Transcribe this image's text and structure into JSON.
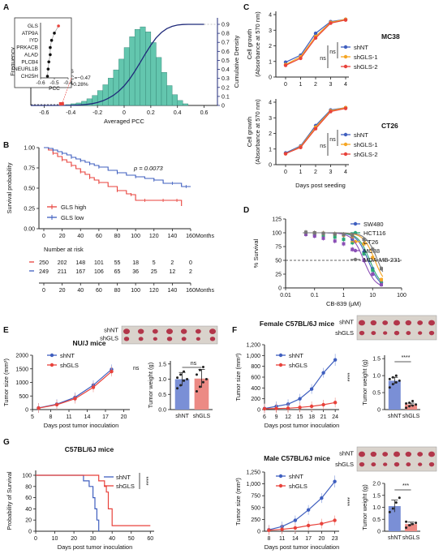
{
  "panel_letters": [
    "A",
    "B",
    "C",
    "D",
    "E",
    "F",
    "G"
  ],
  "colors": {
    "blue": "#3f5fbf",
    "red": "#e8423b",
    "orange": "#f5a623",
    "teal": "#4fb3a4",
    "hist": "#63c6ae",
    "navy": "#1f2a7a",
    "green": "#2aa876",
    "purple": "#8a4fb5",
    "gray": "#777777",
    "ebar_red": "#f19a92",
    "ebar_blue": "#8ea4df"
  },
  "chart_data": [
    {
      "id": "A",
      "type": "bar",
      "xlabel": "Averaged PCC",
      "ylabel": "Frequency",
      "y2label": "Cumulative Density",
      "xticks": [
        "-0.6",
        "-0.4",
        "-0.2",
        "0",
        "0.2",
        "0.4",
        "0.6"
      ],
      "y2ticks": [
        "0",
        "0.1",
        "0.2",
        "0.3",
        "0.4",
        "0.5",
        "0.6",
        "0.7",
        "0.8",
        "0.9"
      ],
      "bins": [
        [
          -0.42,
          1
        ],
        [
          -0.38,
          2
        ],
        [
          -0.34,
          3
        ],
        [
          -0.3,
          5
        ],
        [
          -0.26,
          8
        ],
        [
          -0.22,
          12
        ],
        [
          -0.18,
          18
        ],
        [
          -0.14,
          25
        ],
        [
          -0.1,
          33
        ],
        [
          -0.06,
          43
        ],
        [
          -0.02,
          56
        ],
        [
          0.02,
          70
        ],
        [
          0.06,
          83
        ],
        [
          0.1,
          92
        ],
        [
          0.14,
          95
        ],
        [
          0.18,
          89
        ],
        [
          0.22,
          76
        ],
        [
          0.26,
          58
        ],
        [
          0.3,
          40
        ],
        [
          0.34,
          24
        ],
        [
          0.38,
          13
        ],
        [
          0.42,
          6
        ],
        [
          0.46,
          2
        ]
      ],
      "annotation": [
        "GLS",
        "PCC=−0.47",
        "cdf=0.28%"
      ],
      "inset": {
        "xlabel": "PCC",
        "xticks": [
          "-0.6",
          "-0.5",
          "-0.4"
        ],
        "genes": [
          "GLS",
          "ATP9A",
          "IYD",
          "PRKACB",
          "ALAD",
          "PLCB4",
          "NEURL1B",
          "CH25H"
        ],
        "pcc": [
          -0.47,
          -0.5,
          -0.52,
          -0.53,
          -0.53,
          -0.54,
          -0.545,
          -0.55
        ]
      }
    },
    {
      "id": "B",
      "type": "line",
      "ylabel": "Survival probability",
      "xunit": "Months",
      "xticks": [
        "0",
        "20",
        "40",
        "60",
        "80",
        "100",
        "120",
        "140",
        "160"
      ],
      "yticks": [
        "0.00",
        "0.25",
        "0.50",
        "0.75",
        "1.00"
      ],
      "pvalue": "p = 0.0073",
      "series": [
        {
          "name": "GLS high",
          "x": [
            0,
            5,
            10,
            15,
            20,
            25,
            30,
            35,
            40,
            45,
            50,
            55,
            60,
            70,
            80,
            90,
            95,
            100,
            110,
            120,
            130,
            140,
            145,
            150
          ],
          "y": [
            1.0,
            0.97,
            0.93,
            0.89,
            0.85,
            0.82,
            0.78,
            0.74,
            0.7,
            0.67,
            0.63,
            0.6,
            0.57,
            0.52,
            0.47,
            0.43,
            0.42,
            0.35,
            0.35,
            0.35,
            0.35,
            0.35,
            0.35,
            0.28
          ]
        },
        {
          "name": "GLS low",
          "x": [
            0,
            5,
            10,
            15,
            20,
            25,
            30,
            35,
            40,
            45,
            50,
            55,
            60,
            70,
            80,
            90,
            100,
            110,
            120,
            130,
            140,
            150,
            155,
            160
          ],
          "y": [
            1.0,
            0.99,
            0.97,
            0.95,
            0.93,
            0.91,
            0.88,
            0.86,
            0.84,
            0.82,
            0.8,
            0.78,
            0.76,
            0.72,
            0.69,
            0.66,
            0.64,
            0.62,
            0.6,
            0.56,
            0.56,
            0.52,
            0.52,
            0.52
          ]
        }
      ],
      "risk_title": "Number at risk",
      "risk": [
        [
          "250",
          "202",
          "148",
          "101",
          "55",
          "18",
          "5",
          "2",
          "0"
        ],
        [
          "249",
          "211",
          "167",
          "106",
          "65",
          "36",
          "25",
          "12",
          "2"
        ]
      ]
    },
    {
      "id": "C",
      "type": "line",
      "ylabel": [
        "Cell growth",
        "(Absorbance at 570 nm)"
      ],
      "xlabel": "Days post seeding",
      "xticks": [
        "0",
        "1",
        "2",
        "3",
        "4"
      ],
      "yticks": [
        "0",
        "1",
        "2",
        "3",
        "4"
      ],
      "ns": "ns",
      "series_names": [
        "shNT",
        "shGLS-1",
        "shGLS-2"
      ],
      "panels": [
        {
          "title": "MC38",
          "values": [
            [
              0.95,
              1.4,
              2.8,
              3.55,
              3.7
            ],
            [
              0.8,
              1.3,
              2.6,
              3.5,
              3.7
            ],
            [
              0.75,
              1.2,
              2.5,
              3.45,
              3.65
            ]
          ]
        },
        {
          "title": "CT26",
          "values": [
            [
              0.75,
              1.2,
              2.5,
              3.5,
              3.65
            ],
            [
              0.7,
              1.15,
              2.4,
              3.45,
              3.65
            ],
            [
              0.7,
              1.1,
              2.3,
              3.4,
              3.6
            ]
          ]
        }
      ]
    },
    {
      "id": "D",
      "type": "line",
      "ylabel": "% Survival",
      "xlabel": "CB-839 (μM)",
      "xticks": [
        "0.01",
        "0.1",
        "1",
        "10",
        "100"
      ],
      "yticks": [
        "0",
        "25",
        "50",
        "75",
        "100",
        "125"
      ],
      "series": [
        {
          "name": "SW480",
          "ic50": 7,
          "points": [
            [
              0.05,
              100
            ],
            [
              0.1,
              99
            ],
            [
              0.2,
              98
            ],
            [
              0.5,
              97
            ],
            [
              1,
              95
            ],
            [
              2,
              88
            ],
            [
              5,
              65
            ],
            [
              10,
              35
            ],
            [
              20,
              10
            ]
          ]
        },
        {
          "name": "HCT116",
          "ic50": 8,
          "points": [
            [
              0.05,
              98
            ],
            [
              0.1,
              97
            ],
            [
              0.2,
              95
            ],
            [
              0.5,
              92
            ],
            [
              1,
              88
            ],
            [
              2,
              82
            ],
            [
              5,
              62
            ],
            [
              10,
              32
            ],
            [
              20,
              8
            ]
          ]
        },
        {
          "name": "CT26",
          "ic50": 12,
          "points": [
            [
              0.05,
              100
            ],
            [
              0.1,
              100
            ],
            [
              0.2,
              99
            ],
            [
              0.5,
              98
            ],
            [
              1,
              96
            ],
            [
              2,
              93
            ],
            [
              5,
              80
            ],
            [
              10,
              55
            ],
            [
              20,
              15
            ]
          ]
        },
        {
          "name": "MC38",
          "ic50": 5,
          "points": [
            [
              0.05,
              97
            ],
            [
              0.1,
              94
            ],
            [
              0.2,
              90
            ],
            [
              0.5,
              85
            ],
            [
              1,
              80
            ],
            [
              2,
              70
            ],
            [
              5,
              50
            ],
            [
              10,
              25
            ],
            [
              20,
              6
            ]
          ]
        },
        {
          "name": "MDA-MB-231",
          "ic50": 15,
          "points": [
            [
              0.05,
              101
            ],
            [
              0.1,
              100
            ],
            [
              0.2,
              99
            ],
            [
              0.5,
              98
            ],
            [
              1,
              97
            ],
            [
              2,
              95
            ],
            [
              5,
              88
            ],
            [
              10,
              70
            ],
            [
              20,
              35
            ]
          ]
        }
      ]
    },
    {
      "id": "E",
      "type": "line",
      "title": "NU/J mice",
      "ylabel": "Tumor size (mm³)",
      "xlabel": "Days post tumor inoculation",
      "xticks": [
        "5",
        "8",
        "11",
        "14",
        "17",
        "20"
      ],
      "yticks": [
        "0",
        "500",
        "1000",
        "1500",
        "2000"
      ],
      "ns": "ns",
      "series": [
        {
          "name": "shNT",
          "x": [
            6,
            9,
            12,
            15,
            18
          ],
          "y": [
            60,
            200,
            450,
            900,
            1480
          ]
        },
        {
          "name": "shGLS",
          "x": [
            6,
            9,
            12,
            15,
            18
          ],
          "y": [
            55,
            180,
            400,
            820,
            1400
          ]
        }
      ],
      "bar": {
        "ylabel": "Tumor weight (g)",
        "categories": [
          "shNT",
          "shGLS"
        ],
        "values": [
          1.0,
          1.02
        ],
        "sd": [
          0.22,
          0.3
        ],
        "yticks": [
          "0.0",
          "0.5",
          "1.0",
          "1.5"
        ],
        "ns": "ns",
        "dots": [
          [
            0.7,
            0.8,
            0.95,
            1.0,
            1.05,
            1.15,
            1.25
          ],
          [
            0.6,
            0.75,
            0.9,
            1.0,
            1.15,
            1.3,
            1.4
          ]
        ]
      },
      "photo_labels": [
        "shNT",
        "shGLS"
      ]
    },
    {
      "id": "F1",
      "type": "line",
      "title": "Female C57BL/6J mice",
      "ylabel": "Tumor size (mm³)",
      "xlabel": "Days post tumor inoculation",
      "xticks": [
        "6",
        "9",
        "12",
        "15",
        "18",
        "21",
        "24"
      ],
      "yticks": [
        "0",
        "200",
        "400",
        "600",
        "800",
        "1,000",
        "1,200"
      ],
      "stars": "****",
      "series": [
        {
          "name": "shNT",
          "x": [
            6,
            9,
            12,
            15,
            18,
            21,
            24
          ],
          "y": [
            20,
            60,
            100,
            200,
            380,
            680,
            920
          ]
        },
        {
          "name": "shGLS",
          "x": [
            6,
            9,
            12,
            15,
            18,
            21,
            24
          ],
          "y": [
            15,
            20,
            25,
            40,
            60,
            90,
            130
          ]
        }
      ],
      "bar": {
        "ylabel": "Tumor weight (g)",
        "categories": [
          "shNT",
          "shGLS"
        ],
        "values": [
          0.85,
          0.15
        ],
        "sd": [
          0.1,
          0.04
        ],
        "yticks": [
          "0",
          "0.5",
          "1.0",
          "1.5"
        ],
        "stars": "****",
        "dots": [
          [
            0.65,
            0.75,
            0.8,
            0.85,
            0.9,
            0.95,
            1.0
          ],
          [
            0.05,
            0.1,
            0.12,
            0.15,
            0.18,
            0.2,
            0.25
          ]
        ]
      },
      "photo_labels": [
        "shNT",
        "shGLS"
      ]
    },
    {
      "id": "F2",
      "type": "line",
      "title": "Male C57BL/6J mice",
      "ylabel": "Tumor size (mm³)",
      "xlabel": "Days post tumor inoculation",
      "xticks": [
        "8",
        "11",
        "14",
        "17",
        "20",
        "23"
      ],
      "yticks": [
        "0",
        "250",
        "500",
        "750",
        "1,000",
        "1,250"
      ],
      "stars": "****",
      "series": [
        {
          "name": "shNT",
          "x": [
            8,
            11,
            14,
            17,
            20,
            23
          ],
          "y": [
            30,
            100,
            230,
            450,
            700,
            1050
          ]
        },
        {
          "name": "shGLS",
          "x": [
            8,
            11,
            14,
            17,
            20,
            23
          ],
          "y": [
            20,
            40,
            70,
            120,
            160,
            230
          ]
        }
      ],
      "bar": {
        "ylabel": "Tumor weight (g)",
        "categories": [
          "shNT",
          "shGLS"
        ],
        "values": [
          1.05,
          0.3
        ],
        "sd": [
          0.25,
          0.08
        ],
        "yticks": [
          "0",
          "0.5",
          "1.0",
          "1.5",
          "2.0"
        ],
        "stars": "***",
        "dots": [
          [
            0.8,
            0.95,
            1.2,
            1.4
          ],
          [
            0.15,
            0.25,
            0.3,
            0.35,
            0.4
          ]
        ]
      },
      "photo_labels": [
        "shNT",
        "shGLS"
      ]
    },
    {
      "id": "G",
      "type": "line",
      "title": "C57BL/6J mice",
      "ylabel": "Probability of Survival",
      "xlabel": "Days post tumor inoculation",
      "xticks": [
        "0",
        "10",
        "20",
        "30",
        "40",
        "50",
        "60"
      ],
      "yticks": [
        "0",
        "20",
        "40",
        "60",
        "80",
        "100"
      ],
      "stars": "****",
      "series": [
        {
          "name": "shNT",
          "steps": [
            [
              0,
              100
            ],
            [
              25,
              100
            ],
            [
              25,
              90
            ],
            [
              28,
              90
            ],
            [
              28,
              80
            ],
            [
              30,
              80
            ],
            [
              30,
              60
            ],
            [
              31,
              60
            ],
            [
              31,
              40
            ],
            [
              32,
              40
            ],
            [
              32,
              20
            ],
            [
              33,
              20
            ],
            [
              33,
              0
            ]
          ]
        },
        {
          "name": "shGLS",
          "steps": [
            [
              0,
              100
            ],
            [
              33,
              100
            ],
            [
              33,
              90
            ],
            [
              36,
              90
            ],
            [
              36,
              80
            ],
            [
              37,
              80
            ],
            [
              37,
              70
            ],
            [
              38,
              70
            ],
            [
              38,
              40
            ],
            [
              40,
              40
            ],
            [
              40,
              10
            ],
            [
              60,
              10
            ]
          ]
        }
      ]
    }
  ]
}
